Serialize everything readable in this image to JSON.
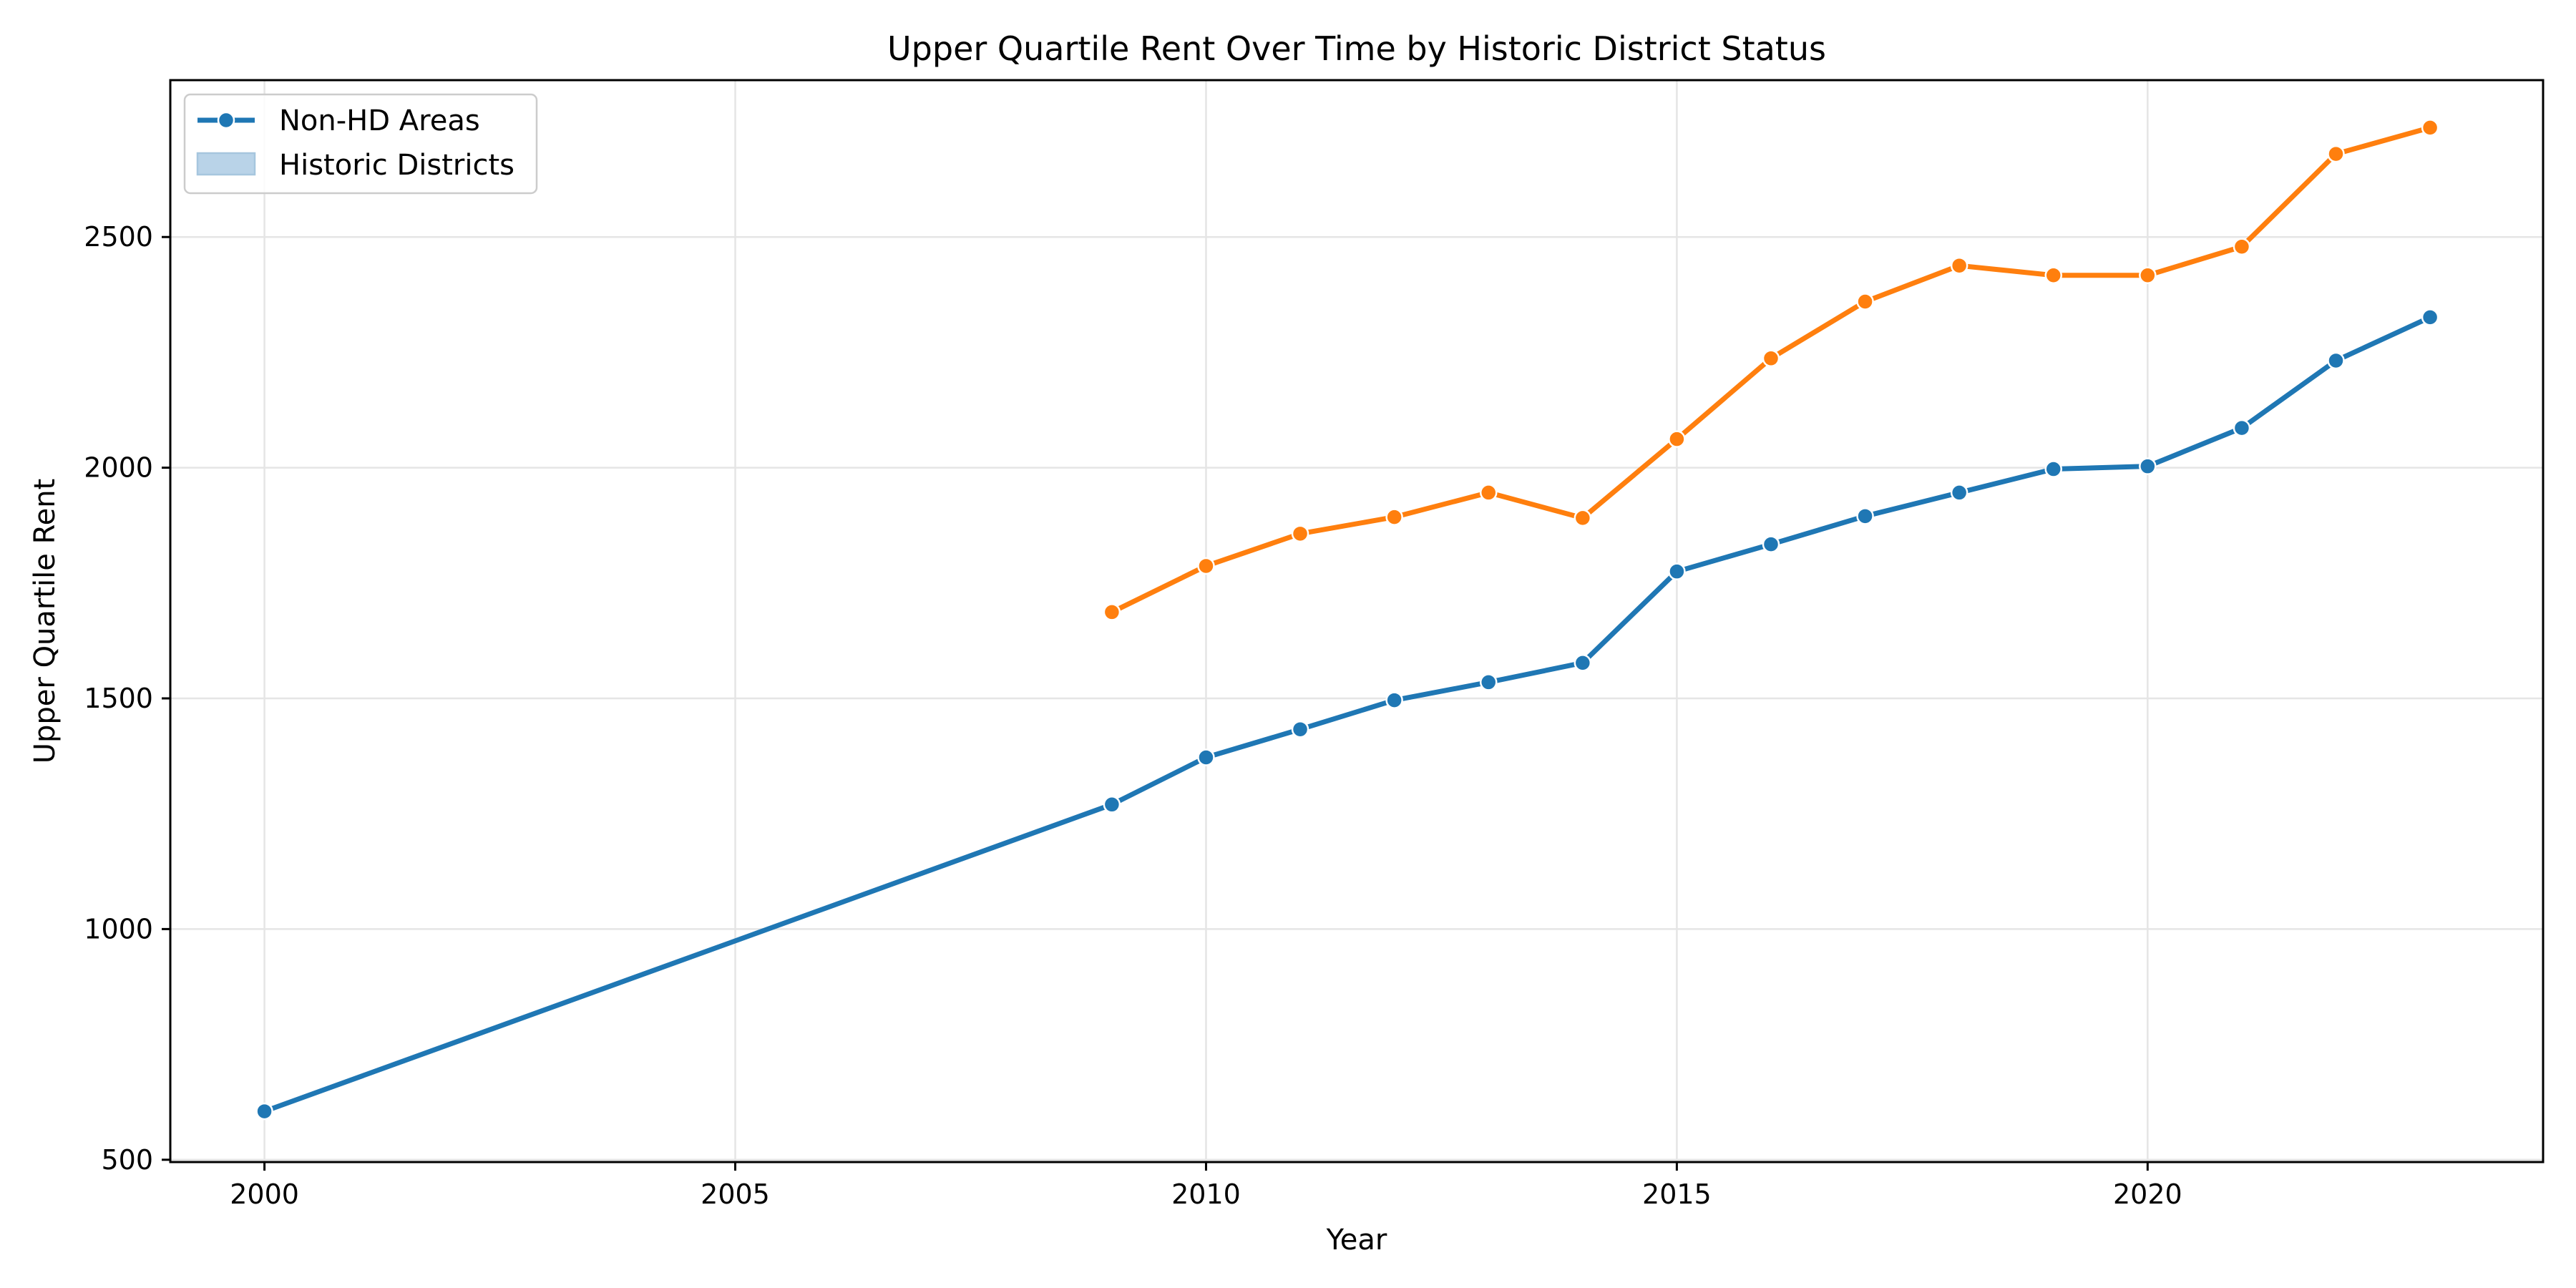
{
  "chart_data": {
    "type": "line",
    "title": "Upper Quartile Rent Over Time by Historic District Status",
    "xlabel": "Year",
    "ylabel": "Upper Quartile Rent",
    "xlim": [
      1999,
      2024.2
    ],
    "ylim": [
      495,
      2840
    ],
    "x_ticks": [
      2000,
      2005,
      2010,
      2015,
      2020
    ],
    "y_ticks": [
      500,
      1000,
      1500,
      2000,
      2500
    ],
    "grid": true,
    "legend_position": "top-left",
    "legend": [
      {
        "label": "Non-HD Areas",
        "kind": "line",
        "color": "#1f77b4"
      },
      {
        "label": "Historic Districts",
        "kind": "patch",
        "color": "#b9d3e8"
      }
    ],
    "series": [
      {
        "color": "#1f77b4",
        "x": [
          2000,
          2009,
          2010,
          2011,
          2012,
          2013,
          2014,
          2015,
          2016,
          2017,
          2018,
          2019,
          2020,
          2021,
          2022,
          2023
        ],
        "values": [
          605,
          1270,
          1372,
          1433,
          1496,
          1535,
          1577,
          1775,
          1834,
          1895,
          1946,
          1997,
          2003,
          2086,
          2232,
          2326
        ]
      },
      {
        "color": "#ff7f0e",
        "x": [
          2009,
          2010,
          2011,
          2012,
          2013,
          2014,
          2015,
          2016,
          2017,
          2018,
          2019,
          2020,
          2021,
          2022,
          2023
        ],
        "values": [
          1687,
          1787,
          1857,
          1893,
          1946,
          1891,
          2062,
          2237,
          2360,
          2438,
          2417,
          2417,
          2479,
          2680,
          2737
        ]
      }
    ]
  }
}
